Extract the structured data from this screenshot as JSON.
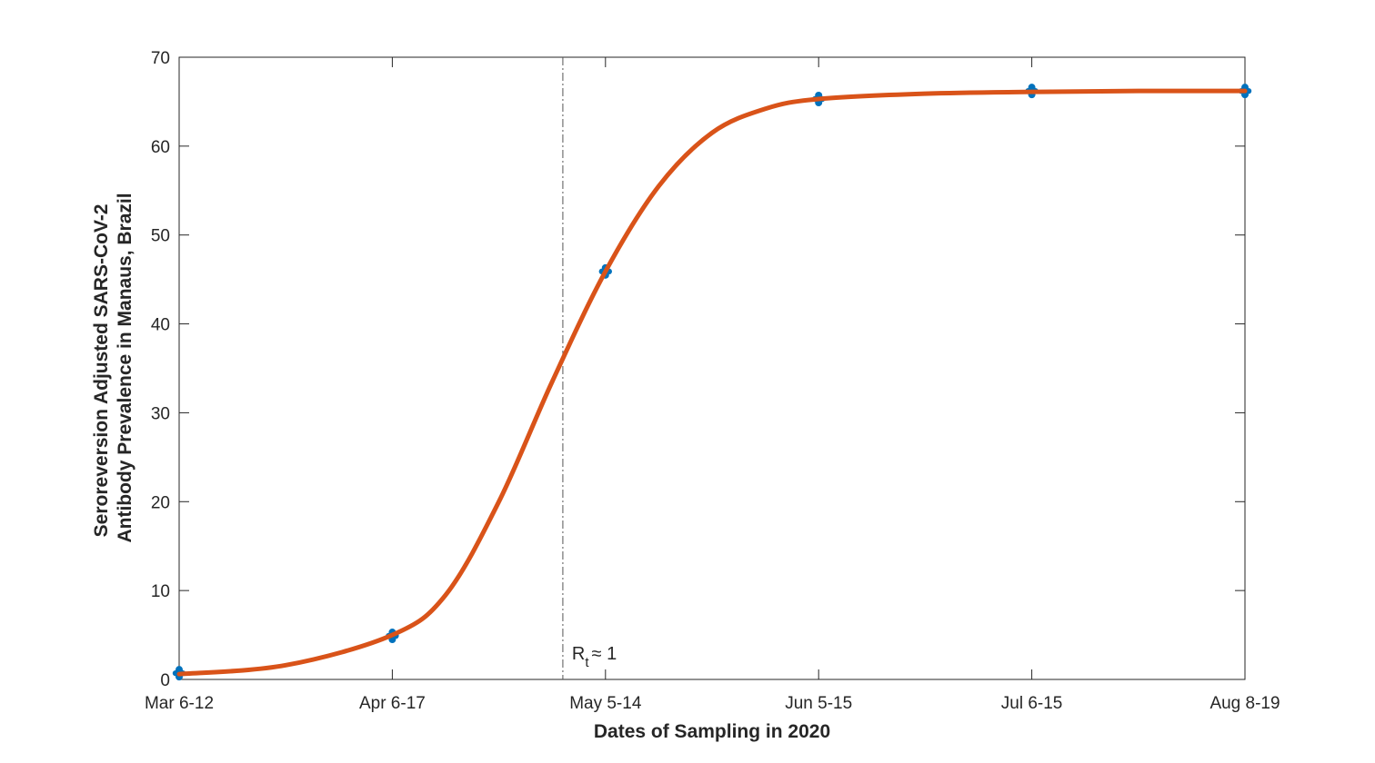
{
  "chart_data": {
    "type": "line",
    "title": "",
    "xlabel": "Dates of Sampling in 2020",
    "ylabel_lines": [
      "Seroreversion Adjusted SARS-CoV-2",
      "Antibody Prevalence in Manaus, Brazil"
    ],
    "categories": [
      "Mar 6-12",
      "Apr 6-17",
      "May 5-14",
      "Jun 5-15",
      "Jul 6-15",
      "Aug 8-19"
    ],
    "ylim": [
      0,
      70
    ],
    "yticks": [
      0,
      10,
      20,
      30,
      40,
      50,
      60,
      70
    ],
    "yticks_labels": [
      "0",
      "10",
      "20",
      "30",
      "40",
      "50",
      "60",
      "70"
    ],
    "grid": false,
    "series": [
      {
        "kind": "markers",
        "color": "#0072BD",
        "x": [
          0,
          1,
          2,
          3,
          4,
          5
        ],
        "values": [
          0.7,
          4.9,
          45.9,
          65.3,
          66.2,
          66.2
        ]
      },
      {
        "kind": "fit-line",
        "color": "#D95319",
        "x": [
          0,
          0.5,
          1,
          1.25,
          1.5,
          1.75,
          2,
          2.25,
          2.5,
          2.75,
          3,
          3.5,
          4,
          4.5,
          5
        ],
        "values": [
          0.6,
          1.6,
          5.0,
          9.5,
          20.0,
          33.5,
          45.9,
          55.5,
          61.5,
          64.2,
          65.3,
          65.9,
          66.1,
          66.2,
          66.2
        ]
      }
    ],
    "annotation": {
      "x": 1.8,
      "main": "R",
      "sub": "t",
      "rest": "≈ 1"
    }
  }
}
